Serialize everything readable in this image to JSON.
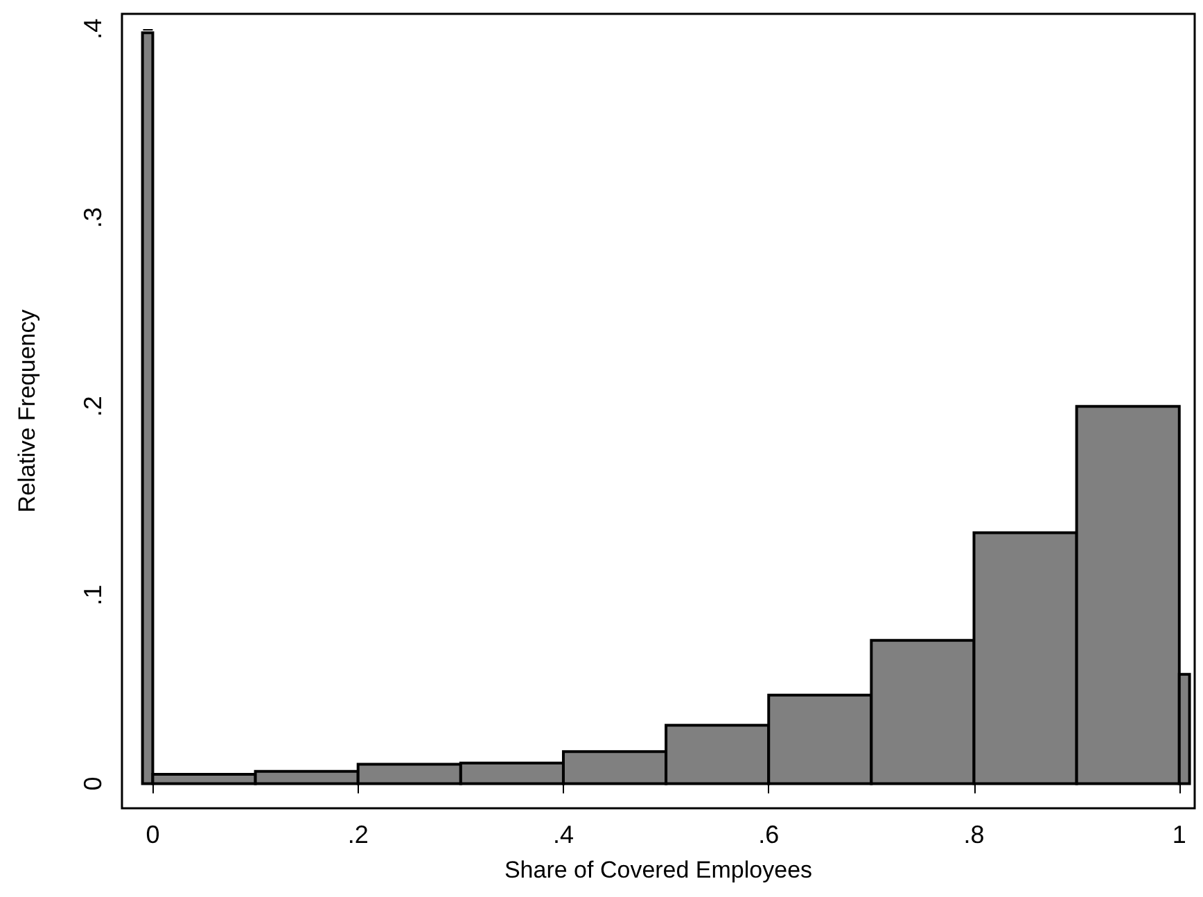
{
  "chart_data": {
    "type": "histogram",
    "xlabel": "Share of Covered Employees",
    "ylabel": "Relative Frequency",
    "bins": [
      -0.01,
      0,
      0.1,
      0.2,
      0.3,
      0.4,
      0.5,
      0.6,
      0.7,
      0.8,
      0.9,
      1.0,
      1.01
    ],
    "values": [
      0.398,
      0.005,
      0.0066,
      0.0103,
      0.011,
      0.017,
      0.031,
      0.047,
      0.076,
      0.133,
      0.2,
      0.058
    ],
    "color": "#808080",
    "xlim": [
      -0.03,
      1.015
    ],
    "ylim": [
      -0.013,
      0.408
    ],
    "xticks": [
      0,
      {
        "value": 0.2,
        "label": ".2"
      },
      {
        "value": 0.4,
        "label": ".4"
      },
      {
        "value": 0.6,
        "label": ".6"
      },
      {
        "value": 0.8,
        "label": ".8"
      },
      1
    ],
    "yticks": [
      0,
      {
        "value": 0.1,
        "label": ".1"
      },
      {
        "value": 0.2,
        "label": ".2"
      },
      {
        "value": 0.3,
        "label": ".3"
      },
      {
        "value": 0.4,
        "label": ".4"
      }
    ]
  }
}
